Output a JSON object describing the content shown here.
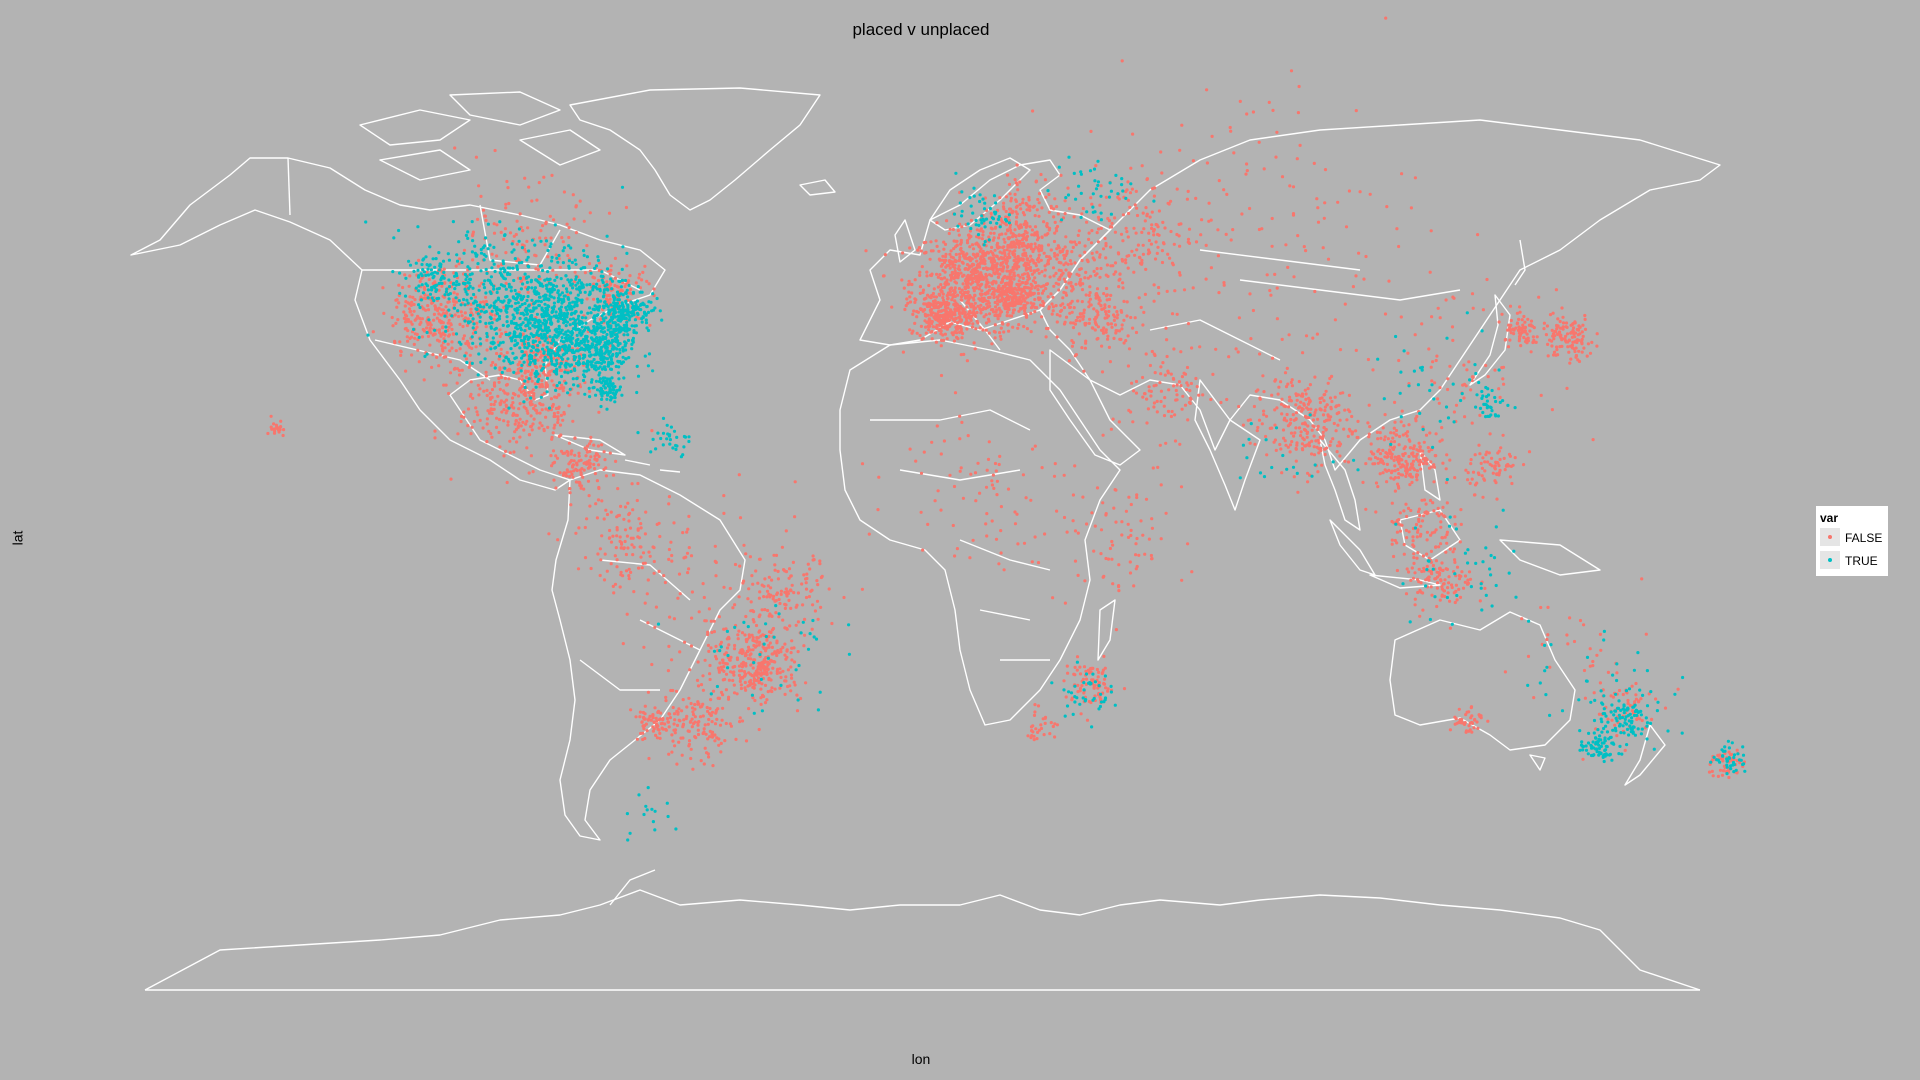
{
  "title": "placed v unplaced",
  "x_axis_label": "lon",
  "y_axis_label": "lat",
  "legend": {
    "title": "var",
    "entries": [
      {
        "label": "FALSE",
        "color": "#f8766d"
      },
      {
        "label": "TRUE",
        "color": "#00bfc4"
      }
    ]
  },
  "colors": {
    "background": "#b3b3b3",
    "borders": "#ffffff",
    "false_points": "#f8766d",
    "true_points": "#00bfc4"
  },
  "chart_data": {
    "type": "scatter",
    "title": "placed v unplaced",
    "xlabel": "lon",
    "ylabel": "lat",
    "xlim": [
      -180,
      180
    ],
    "ylim": [
      -90,
      90
    ],
    "grid": false,
    "legend_position": "right",
    "series": [
      {
        "name": "FALSE",
        "color": "#f8766d",
        "clusters": [
          {
            "lon": 3,
            "lat": 46,
            "spread": 7,
            "count": 700
          },
          {
            "lon": -4,
            "lat": 40,
            "spread": 3,
            "count": 220
          },
          {
            "lon": 14,
            "lat": 51,
            "spread": 5,
            "count": 300
          },
          {
            "lon": 12,
            "lat": 43,
            "spread": 3,
            "count": 160
          },
          {
            "lon": 25,
            "lat": 45,
            "spread": 6,
            "count": 180
          },
          {
            "lon": 38,
            "lat": 55,
            "spread": 8,
            "count": 160
          },
          {
            "lon": 33,
            "lat": 39,
            "spread": 4,
            "count": 100
          },
          {
            "lon": 15,
            "lat": 60,
            "spread": 4,
            "count": 80
          },
          {
            "lon": 65,
            "lat": 55,
            "spread": 20,
            "count": 160
          },
          {
            "lon": 78,
            "lat": 21,
            "spread": 6,
            "count": 260
          },
          {
            "lon": 101,
            "lat": 15,
            "spread": 4,
            "count": 200
          },
          {
            "lon": 104,
            "lat": 3,
            "spread": 4,
            "count": 90
          },
          {
            "lon": 109,
            "lat": -7,
            "spread": 4,
            "count": 120
          },
          {
            "lon": 121,
            "lat": 13,
            "spread": 3,
            "count": 70
          },
          {
            "lon": 128,
            "lat": 37,
            "spread": 2,
            "count": 70
          },
          {
            "lon": 138,
            "lat": 36,
            "spread": 3,
            "count": 120
          },
          {
            "lon": 112,
            "lat": 30,
            "spread": 10,
            "count": 90
          },
          {
            "lon": 47,
            "lat": 27,
            "spread": 6,
            "count": 100
          },
          {
            "lon": -100,
            "lat": 24,
            "spread": 7,
            "count": 300
          },
          {
            "lon": -86,
            "lat": 13,
            "spread": 3,
            "count": 110
          },
          {
            "lon": -118,
            "lat": 40,
            "spread": 6,
            "count": 320
          },
          {
            "lon": -95,
            "lat": 32,
            "spread": 4,
            "count": 140
          },
          {
            "lon": -100,
            "lat": 50,
            "spread": 10,
            "count": 160
          },
          {
            "lon": -78,
            "lat": 44,
            "spread": 4,
            "count": 120
          },
          {
            "lon": -46,
            "lat": -22,
            "spread": 5,
            "count": 300
          },
          {
            "lon": -40,
            "lat": -10,
            "spread": 5,
            "count": 110
          },
          {
            "lon": -60,
            "lat": -33,
            "spread": 5,
            "count": 150
          },
          {
            "lon": -70,
            "lat": -33,
            "spread": 2,
            "count": 60
          },
          {
            "lon": -75,
            "lat": 0,
            "spread": 6,
            "count": 120
          },
          {
            "lon": -55,
            "lat": -10,
            "spread": 12,
            "count": 100
          },
          {
            "lon": 30,
            "lat": -26,
            "spread": 3,
            "count": 80
          },
          {
            "lon": 18,
            "lat": -33,
            "spread": 2,
            "count": 30
          },
          {
            "lon": 35,
            "lat": 0,
            "spread": 8,
            "count": 80
          },
          {
            "lon": 5,
            "lat": 10,
            "spread": 10,
            "count": 80
          },
          {
            "lon": 115,
            "lat": -32,
            "spread": 2,
            "count": 40
          },
          {
            "lon": 150,
            "lat": -30,
            "spread": 4,
            "count": 60
          },
          {
            "lon": 174,
            "lat": -40,
            "spread": 2,
            "count": 50
          },
          {
            "lon": 145,
            "lat": -20,
            "spread": 10,
            "count": 30
          },
          {
            "lon": -155,
            "lat": 20,
            "spread": 1,
            "count": 20
          }
        ]
      },
      {
        "name": "TRUE",
        "color": "#00bfc4",
        "clusters": [
          {
            "lon": -92,
            "lat": 39,
            "spread": 8,
            "count": 900
          },
          {
            "lon": -82,
            "lat": 34,
            "spread": 4,
            "count": 250
          },
          {
            "lon": -108,
            "lat": 45,
            "spread": 8,
            "count": 250
          },
          {
            "lon": -76,
            "lat": 41,
            "spread": 3,
            "count": 160
          },
          {
            "lon": -80,
            "lat": 27,
            "spread": 1.5,
            "count": 60
          },
          {
            "lon": -120,
            "lat": 47,
            "spread": 3,
            "count": 60
          },
          {
            "lon": 5,
            "lat": 58,
            "spread": 3,
            "count": 50
          },
          {
            "lon": 30,
            "lat": 62,
            "spread": 5,
            "count": 40
          },
          {
            "lon": 151,
            "lat": -32,
            "spread": 3,
            "count": 90
          },
          {
            "lon": 145,
            "lat": -37,
            "spread": 2,
            "count": 70
          },
          {
            "lon": 145,
            "lat": -25,
            "spread": 8,
            "count": 40
          },
          {
            "lon": 175,
            "lat": -39,
            "spread": 2,
            "count": 40
          },
          {
            "lon": 110,
            "lat": 28,
            "spread": 8,
            "count": 40
          },
          {
            "lon": 121,
            "lat": 24,
            "spread": 2,
            "count": 30
          },
          {
            "lon": 115,
            "lat": -5,
            "spread": 8,
            "count": 40
          },
          {
            "lon": 28,
            "lat": -27,
            "spread": 3,
            "count": 40
          },
          {
            "lon": -45,
            "lat": -20,
            "spread": 8,
            "count": 40
          },
          {
            "lon": -66,
            "lat": 18,
            "spread": 3,
            "count": 30
          },
          {
            "lon": 75,
            "lat": 15,
            "spread": 6,
            "count": 20
          },
          {
            "lon": -70,
            "lat": -50,
            "spread": 4,
            "count": 15
          }
        ]
      }
    ]
  }
}
